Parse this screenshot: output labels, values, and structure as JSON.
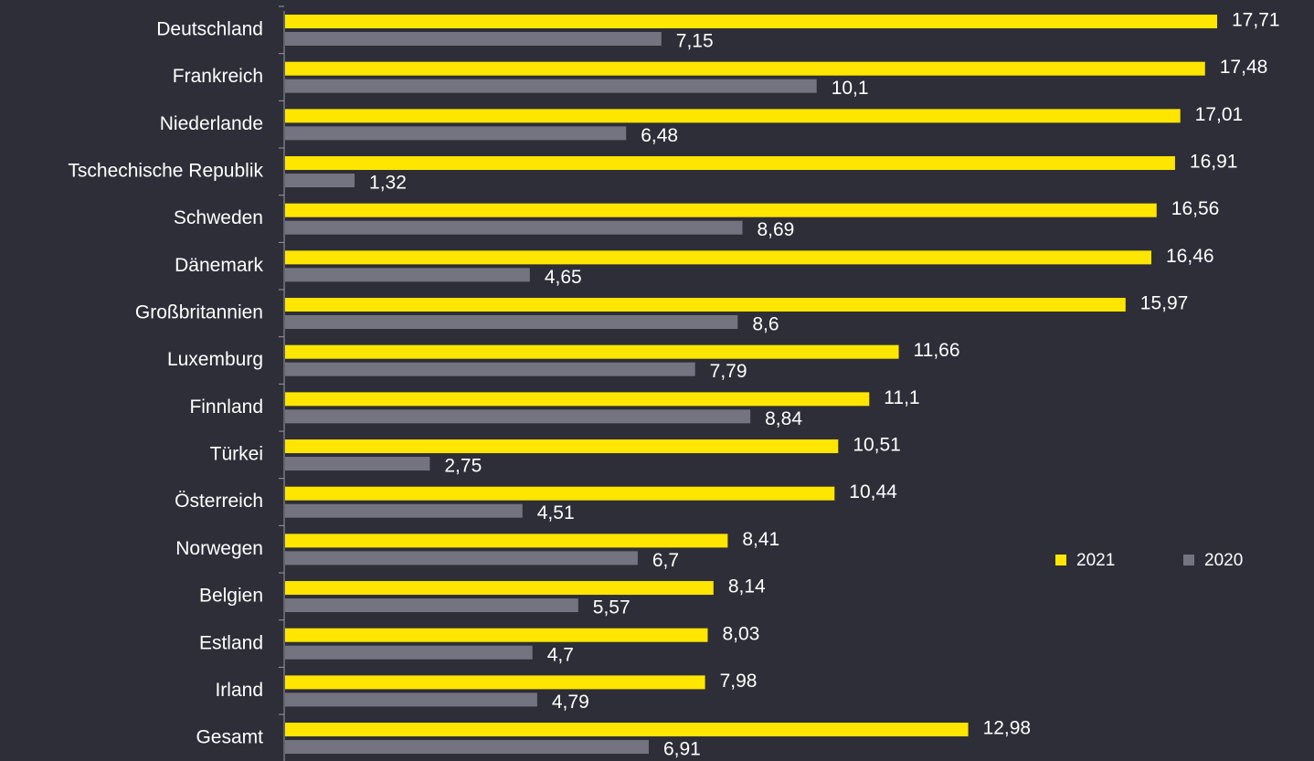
{
  "chart_data": {
    "type": "bar",
    "orientation": "horizontal",
    "categories": [
      "Deutschland",
      "Frankreich",
      "Niederlande",
      "Tschechische Republik",
      "Schweden",
      "Dänemark",
      "Großbritannien",
      "Luxemburg",
      "Finnland",
      "Türkei",
      "Österreich",
      "Norwegen",
      "Belgien",
      "Estland",
      "Irland",
      "Gesamt"
    ],
    "series": [
      {
        "name": "2021",
        "color": "#ffe600",
        "values": [
          17.71,
          17.48,
          17.01,
          16.91,
          16.56,
          16.46,
          15.97,
          11.66,
          11.1,
          10.51,
          10.44,
          8.41,
          8.14,
          8.03,
          7.98,
          12.98
        ],
        "value_labels": [
          "17,71",
          "17,48",
          "17,01",
          "16,91",
          "16,56",
          "16,46",
          "15,97",
          "11,66",
          "11,1",
          "10,51",
          "10,44",
          "8,41",
          "8,14",
          "8,03",
          "7,98",
          "12,98"
        ]
      },
      {
        "name": "2020",
        "color": "#747480",
        "values": [
          7.15,
          10.1,
          6.48,
          1.32,
          8.69,
          4.65,
          8.6,
          7.79,
          8.84,
          2.75,
          4.51,
          6.7,
          5.57,
          4.7,
          4.79,
          6.91
        ],
        "value_labels": [
          "7,15",
          "10,1",
          "6,48",
          "1,32",
          "8,69",
          "4,65",
          "8,6",
          "7,79",
          "8,84",
          "2,75",
          "4,51",
          "6,7",
          "5,57",
          "4,7",
          "4,79",
          "6,91"
        ]
      }
    ]
  }
}
